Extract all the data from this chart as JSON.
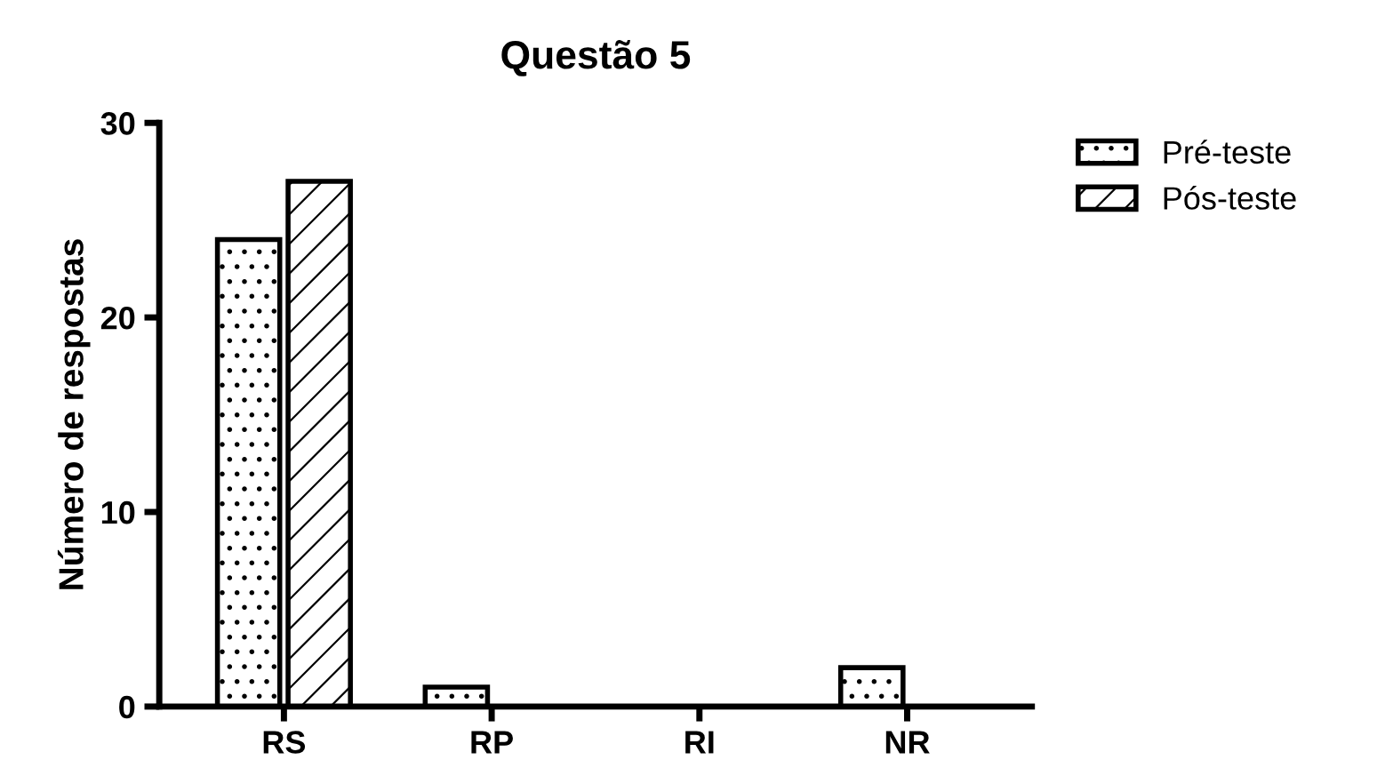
{
  "chart_data": {
    "type": "bar",
    "title": "Questão 5",
    "ylabel": "Número de respostas",
    "categories": [
      "RS",
      "RP",
      "RI",
      "NR"
    ],
    "series": [
      {
        "name": "Pré-teste",
        "values": [
          24,
          1,
          0,
          2
        ]
      },
      {
        "name": "Pós-teste",
        "values": [
          27,
          0,
          0,
          0
        ]
      }
    ],
    "ylim": [
      0,
      30
    ],
    "yticks": [
      0,
      10,
      20,
      30
    ],
    "grid": false,
    "legend": "top right"
  }
}
